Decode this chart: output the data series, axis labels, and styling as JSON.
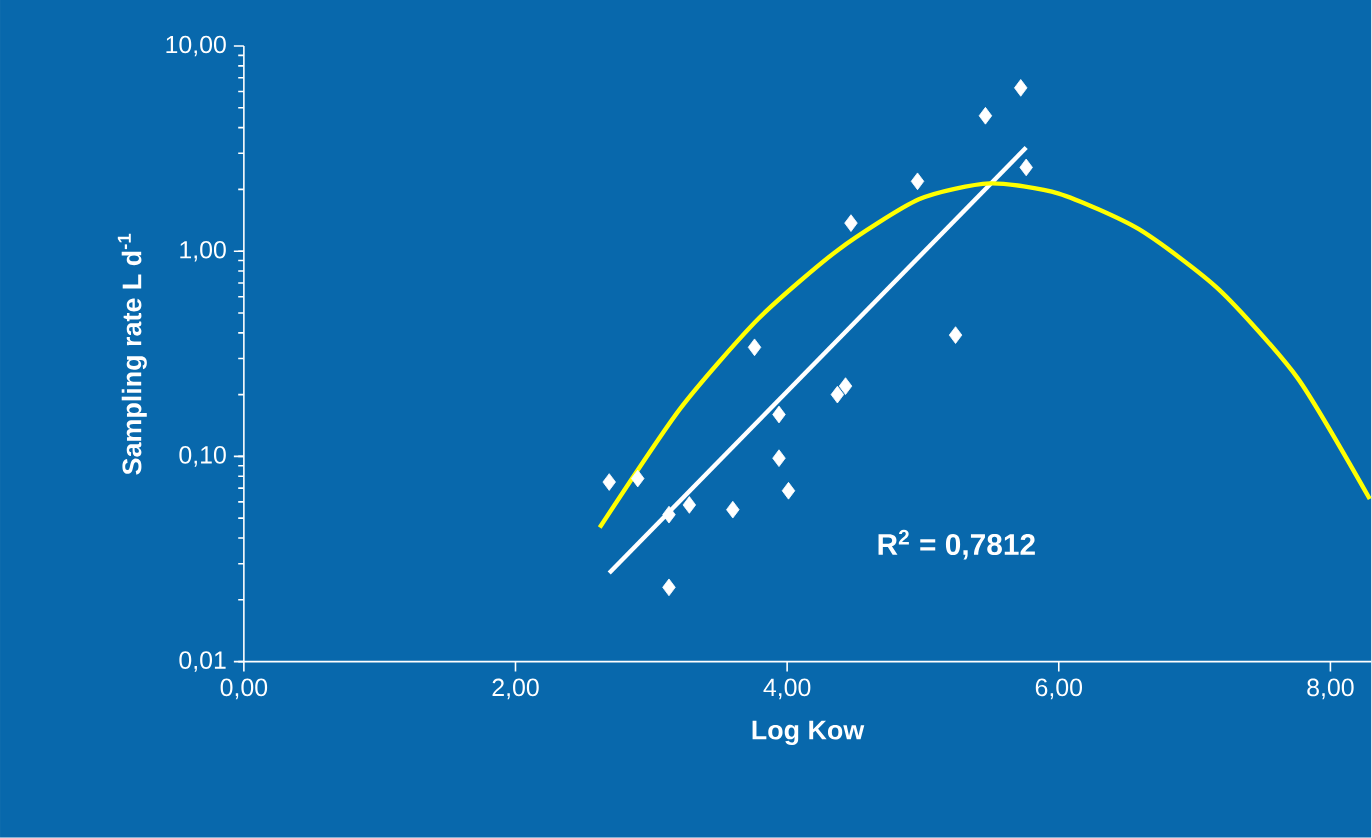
{
  "chart_data": {
    "type": "scatter",
    "xlabel": "Log Kow",
    "ylabel": "Sampling rate L d$^{-1}$",
    "log": "y",
    "grid": false,
    "xlim": [
      0,
      8.3
    ],
    "ylim": [
      0.01,
      10
    ],
    "xticks": [
      {
        "value": 0,
        "label": "0,00"
      },
      {
        "value": 2,
        "label": "2,00"
      },
      {
        "value": 4,
        "label": "4,00"
      },
      {
        "value": 6,
        "label": "6,00"
      },
      {
        "value": 8,
        "label": "8,00"
      }
    ],
    "yticks": [
      {
        "value": 0.01,
        "label": "0,01"
      },
      {
        "value": 0.1,
        "label": "0,10"
      },
      {
        "value": 1,
        "label": "1,00"
      },
      {
        "value": 10,
        "label": "10,00"
      }
    ],
    "annotations": [
      "R$^{2}$ = 0,7812"
    ],
    "series": [
      {
        "type": "scatter",
        "marker": "diamond",
        "color": "#ffffff",
        "x": [
          2.69,
          2.9,
          3.13,
          3.28,
          3.13,
          3.6,
          3.94,
          3.94,
          4.01,
          3.76,
          4.37,
          4.43,
          5.24,
          4.47,
          4.96,
          5.46,
          5.72,
          5.76
        ],
        "values": [
          0.075,
          0.078,
          0.052,
          0.058,
          0.023,
          0.055,
          0.16,
          0.098,
          0.068,
          0.34,
          0.2,
          0.22,
          0.39,
          1.37,
          2.19,
          4.57,
          6.25,
          2.56
        ]
      },
      {
        "type": "line",
        "marker": "none",
        "color": "#ffffff",
        "line_style": "solid",
        "x": [
          2.69,
          5.76
        ],
        "values": [
          0.027,
          3.2
        ]
      },
      {
        "type": "line",
        "marker": "none",
        "color": "#ffff00",
        "line_style": "solid",
        "x": [
          2.62,
          3.21,
          3.79,
          4.38,
          4.97,
          5.49,
          6.0,
          6.59,
          7.18,
          7.76,
          8.29
        ],
        "values": [
          0.045,
          0.17,
          0.47,
          1.02,
          1.79,
          2.14,
          1.91,
          1.28,
          0.65,
          0.24,
          0.062
        ]
      }
    ]
  }
}
